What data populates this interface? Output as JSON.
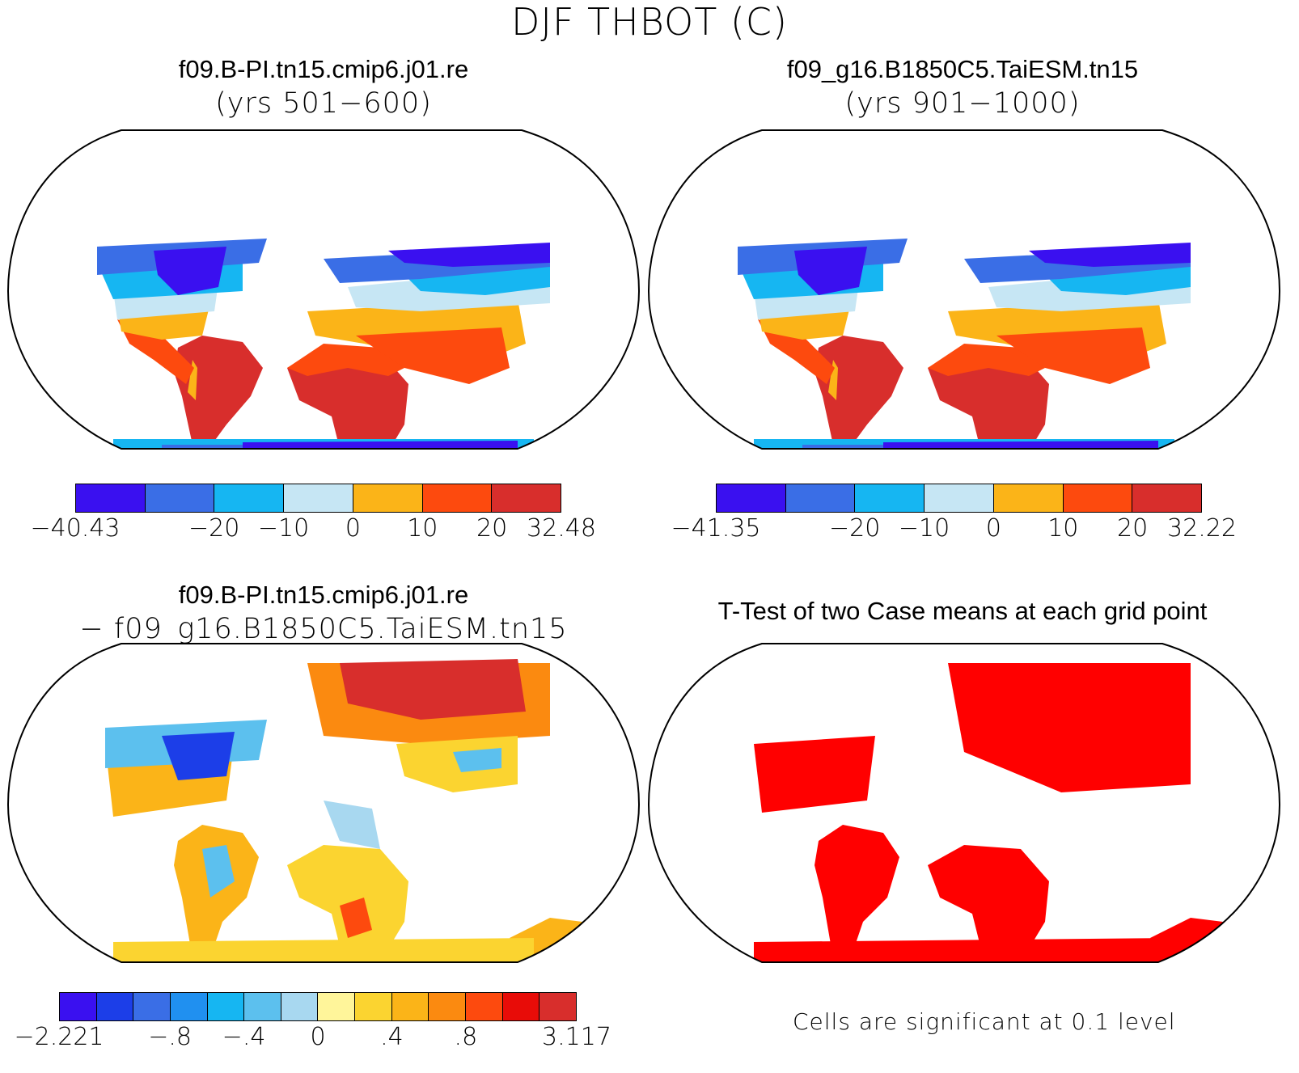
{
  "title": "DJF THBOT (C)",
  "panels": [
    {
      "title": "f09.B-PI.tn15.cmip6.j01.re",
      "subtitle": "(yrs 501−600)",
      "colorbar": {
        "colors": [
          "#3a10f0",
          "#3a6ee6",
          "#16b6f2",
          "#c6e6f4",
          "#fbb418",
          "#fd4a0e",
          "#d82e2c"
        ],
        "ticks": [
          "−40.43",
          "−20",
          "−10",
          "0",
          "10",
          "20",
          "32.48"
        ]
      }
    },
    {
      "title": "f09_g16.B1850C5.TaiESM.tn15",
      "subtitle": "(yrs 901−1000)",
      "colorbar": {
        "colors": [
          "#3a10f0",
          "#3a6ee6",
          "#16b6f2",
          "#c6e6f4",
          "#fbb418",
          "#fd4a0e",
          "#d82e2c"
        ],
        "ticks": [
          "−41.35",
          "−20",
          "−10",
          "0",
          "10",
          "20",
          "32.22"
        ]
      }
    },
    {
      "title": "f09.B-PI.tn15.cmip6.j01.re",
      "subtitle": "− f09_g16.B1850C5.TaiESM.tn15",
      "colorbar": {
        "colors": [
          "#3a10f0",
          "#1c3ee8",
          "#3a6ee6",
          "#2090f0",
          "#16b6f2",
          "#5cc0ee",
          "#a8d8f0",
          "#fff59a",
          "#fbd430",
          "#fbb418",
          "#fb8a10",
          "#fd4a0e",
          "#e80c08",
          "#d82e2c"
        ],
        "ticks": [
          "−2.221",
          "−.8",
          "−.4",
          "0",
          ".4",
          ".8",
          "3.117"
        ]
      }
    },
    {
      "title": "T-Test of two Case means at each grid point",
      "note": "Cells are significant at 0.1 level",
      "significance_color": "#ff0000"
    }
  ]
}
